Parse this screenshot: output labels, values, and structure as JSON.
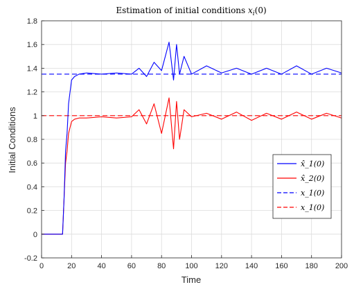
{
  "chart_data": {
    "type": "line",
    "title": "Estimation of initial conditions x_i(0)",
    "xlabel": "Time",
    "ylabel": "Initial Conditions",
    "xlim": [
      0,
      200
    ],
    "ylim": [
      -0.2,
      1.8
    ],
    "xticks": [
      0,
      20,
      40,
      60,
      80,
      100,
      120,
      140,
      160,
      180,
      200
    ],
    "yticks": [
      -0.2,
      0,
      0.2,
      0.4,
      0.6,
      0.8,
      1,
      1.2,
      1.4,
      1.6,
      1.8
    ],
    "grid": true,
    "legend_position": "center-right",
    "series": [
      {
        "name": "x̂_1(0)",
        "color": "#0000ff",
        "style": "solid",
        "x": [
          0,
          14,
          15,
          16,
          17,
          18,
          19,
          20,
          22,
          25,
          30,
          40,
          50,
          60,
          65,
          70,
          75,
          80,
          85,
          88,
          90,
          92,
          95,
          100,
          110,
          120,
          130,
          140,
          150,
          160,
          170,
          180,
          190,
          200
        ],
        "y": [
          0,
          0,
          0.3,
          0.7,
          0.85,
          1.1,
          1.2,
          1.3,
          1.33,
          1.35,
          1.36,
          1.35,
          1.36,
          1.35,
          1.4,
          1.33,
          1.45,
          1.38,
          1.62,
          1.3,
          1.6,
          1.35,
          1.5,
          1.35,
          1.42,
          1.36,
          1.4,
          1.35,
          1.4,
          1.35,
          1.42,
          1.35,
          1.4,
          1.36
        ]
      },
      {
        "name": "x̂_2(0)",
        "color": "#ff0000",
        "style": "solid",
        "x": [
          0,
          14,
          15,
          16,
          17,
          18,
          19,
          20,
          22,
          25,
          30,
          40,
          50,
          60,
          65,
          70,
          75,
          80,
          85,
          88,
          90,
          92,
          95,
          100,
          110,
          120,
          130,
          140,
          150,
          160,
          170,
          180,
          190,
          200
        ],
        "y": [
          0,
          0,
          0.3,
          0.6,
          0.7,
          0.85,
          0.9,
          0.95,
          0.97,
          0.98,
          0.98,
          0.99,
          0.98,
          0.99,
          1.05,
          0.93,
          1.1,
          0.85,
          1.15,
          0.72,
          1.12,
          0.8,
          1.05,
          0.99,
          1.02,
          0.97,
          1.03,
          0.96,
          1.02,
          0.97,
          1.03,
          0.97,
          1.02,
          0.98
        ]
      },
      {
        "name": "x_1(0)",
        "color": "#0000ff",
        "style": "dashed",
        "x": [
          0,
          200
        ],
        "y": [
          1.35,
          1.35
        ]
      },
      {
        "name": "x_1(0)",
        "color": "#ff0000",
        "style": "dashed",
        "x": [
          0,
          200
        ],
        "y": [
          1,
          1
        ]
      }
    ]
  }
}
